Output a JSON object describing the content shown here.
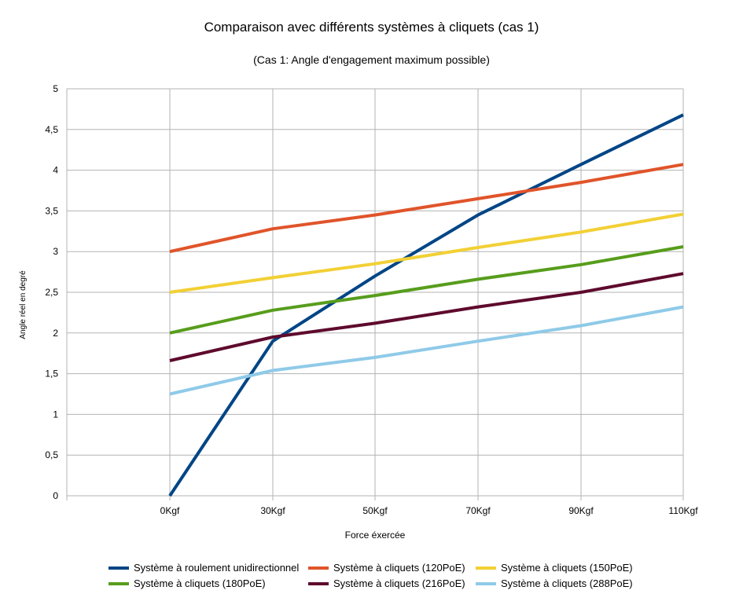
{
  "chart_data": {
    "type": "line",
    "title": "Comparaison avec différents systèmes à cliquets (cas 1)",
    "subtitle": "(Cas 1: Angle d'engagement maximum possible)",
    "xlabel": "Force éxercée",
    "ylabel": "Angle réel en degré",
    "categories": [
      "0Kgf",
      "30Kgf",
      "50Kgf",
      "70Kgf",
      "90Kgf",
      "110Kgf"
    ],
    "y_ticks": [
      "0",
      "0,5",
      "1",
      "1,5",
      "2",
      "2,5",
      "3",
      "3,5",
      "4",
      "4,5",
      "5"
    ],
    "ylim": [
      0,
      5
    ],
    "grid": true,
    "legend_position": "bottom",
    "series": [
      {
        "name": "Système à roulement unidirectionnel",
        "color": "#004586",
        "values": [
          0,
          1.9,
          2.7,
          3.45,
          4.07,
          4.68
        ]
      },
      {
        "name": "Système à cliquets (120PoE)",
        "color": "#e0542a",
        "values": [
          3.0,
          3.28,
          3.45,
          3.65,
          3.85,
          4.07
        ]
      },
      {
        "name": "Système à cliquets (150PoE)",
        "color": "#f2d035",
        "values": [
          2.5,
          2.68,
          2.85,
          3.05,
          3.24,
          3.46
        ]
      },
      {
        "name": "Système à cliquets (180PoE)",
        "color": "#579d1c",
        "values": [
          2.0,
          2.28,
          2.46,
          2.66,
          2.84,
          3.06
        ]
      },
      {
        "name": "Système à cliquets (216PoE)",
        "color": "#5e0a2d",
        "values": [
          1.66,
          1.95,
          2.12,
          2.32,
          2.5,
          2.73
        ]
      },
      {
        "name": "Système à cliquets (288PoE)",
        "color": "#8fcae8",
        "values": [
          1.25,
          1.54,
          1.7,
          1.9,
          2.09,
          2.32
        ]
      }
    ]
  }
}
